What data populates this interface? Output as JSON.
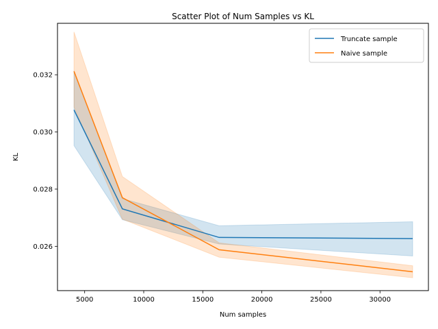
{
  "chart_data": {
    "type": "line",
    "title": "Scatter Plot of Num Samples vs KL",
    "xlabel": "Num samples",
    "ylabel": "KL",
    "xlim": [
      2700,
      34100
    ],
    "ylim": [
      0.02445,
      0.0338
    ],
    "xticks": [
      5000,
      10000,
      15000,
      20000,
      25000,
      30000
    ],
    "yticks": [
      0.026,
      0.028,
      0.03,
      0.032
    ],
    "ytick_format_decimals": 3,
    "grid": false,
    "legend_position": "top-right",
    "x": [
      4096,
      8192,
      16384,
      32768
    ],
    "series": [
      {
        "name": "Truncate sample",
        "color": "#1f77b4",
        "values": [
          0.03077,
          0.02731,
          0.02631,
          0.02627
        ],
        "band_lower": [
          0.02952,
          0.02693,
          0.02608,
          0.02566
        ],
        "band_upper": [
          0.03214,
          0.02767,
          0.02672,
          0.02686
        ]
      },
      {
        "name": "Naive sample",
        "color": "#ff7f0e",
        "values": [
          0.03212,
          0.0277,
          0.02588,
          0.02511
        ],
        "band_lower": [
          0.03087,
          0.02695,
          0.02562,
          0.0249
        ],
        "band_upper": [
          0.0335,
          0.02844,
          0.02612,
          0.02532
        ]
      }
    ]
  }
}
